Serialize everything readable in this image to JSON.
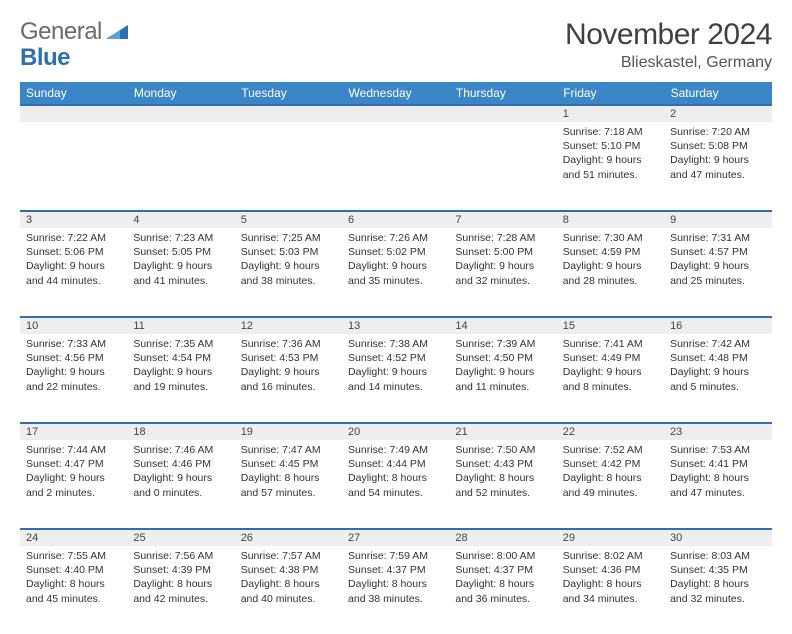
{
  "brand": {
    "name_a": "General",
    "name_b": "Blue"
  },
  "title": "November 2024",
  "location": "Blieskastel, Germany",
  "colors": {
    "header_bg": "#3b86c6",
    "header_text": "#ffffff",
    "accent_rule": "#2f6fb0",
    "daynum_bg": "#eeeeee",
    "page_bg": "#ffffff",
    "text": "#333333",
    "logo_gray": "#6a6a6a",
    "logo_blue": "#2f6fb0"
  },
  "typography": {
    "title_size_pt": 22,
    "header_size_pt": 9,
    "body_size_pt": 8
  },
  "days_of_week": [
    "Sunday",
    "Monday",
    "Tuesday",
    "Wednesday",
    "Thursday",
    "Friday",
    "Saturday"
  ],
  "weeks": [
    [
      null,
      null,
      null,
      null,
      null,
      {
        "n": "1",
        "sunrise": "Sunrise: 7:18 AM",
        "sunset": "Sunset: 5:10 PM",
        "daylight": "Daylight: 9 hours and 51 minutes."
      },
      {
        "n": "2",
        "sunrise": "Sunrise: 7:20 AM",
        "sunset": "Sunset: 5:08 PM",
        "daylight": "Daylight: 9 hours and 47 minutes."
      }
    ],
    [
      {
        "n": "3",
        "sunrise": "Sunrise: 7:22 AM",
        "sunset": "Sunset: 5:06 PM",
        "daylight": "Daylight: 9 hours and 44 minutes."
      },
      {
        "n": "4",
        "sunrise": "Sunrise: 7:23 AM",
        "sunset": "Sunset: 5:05 PM",
        "daylight": "Daylight: 9 hours and 41 minutes."
      },
      {
        "n": "5",
        "sunrise": "Sunrise: 7:25 AM",
        "sunset": "Sunset: 5:03 PM",
        "daylight": "Daylight: 9 hours and 38 minutes."
      },
      {
        "n": "6",
        "sunrise": "Sunrise: 7:26 AM",
        "sunset": "Sunset: 5:02 PM",
        "daylight": "Daylight: 9 hours and 35 minutes."
      },
      {
        "n": "7",
        "sunrise": "Sunrise: 7:28 AM",
        "sunset": "Sunset: 5:00 PM",
        "daylight": "Daylight: 9 hours and 32 minutes."
      },
      {
        "n": "8",
        "sunrise": "Sunrise: 7:30 AM",
        "sunset": "Sunset: 4:59 PM",
        "daylight": "Daylight: 9 hours and 28 minutes."
      },
      {
        "n": "9",
        "sunrise": "Sunrise: 7:31 AM",
        "sunset": "Sunset: 4:57 PM",
        "daylight": "Daylight: 9 hours and 25 minutes."
      }
    ],
    [
      {
        "n": "10",
        "sunrise": "Sunrise: 7:33 AM",
        "sunset": "Sunset: 4:56 PM",
        "daylight": "Daylight: 9 hours and 22 minutes."
      },
      {
        "n": "11",
        "sunrise": "Sunrise: 7:35 AM",
        "sunset": "Sunset: 4:54 PM",
        "daylight": "Daylight: 9 hours and 19 minutes."
      },
      {
        "n": "12",
        "sunrise": "Sunrise: 7:36 AM",
        "sunset": "Sunset: 4:53 PM",
        "daylight": "Daylight: 9 hours and 16 minutes."
      },
      {
        "n": "13",
        "sunrise": "Sunrise: 7:38 AM",
        "sunset": "Sunset: 4:52 PM",
        "daylight": "Daylight: 9 hours and 14 minutes."
      },
      {
        "n": "14",
        "sunrise": "Sunrise: 7:39 AM",
        "sunset": "Sunset: 4:50 PM",
        "daylight": "Daylight: 9 hours and 11 minutes."
      },
      {
        "n": "15",
        "sunrise": "Sunrise: 7:41 AM",
        "sunset": "Sunset: 4:49 PM",
        "daylight": "Daylight: 9 hours and 8 minutes."
      },
      {
        "n": "16",
        "sunrise": "Sunrise: 7:42 AM",
        "sunset": "Sunset: 4:48 PM",
        "daylight": "Daylight: 9 hours and 5 minutes."
      }
    ],
    [
      {
        "n": "17",
        "sunrise": "Sunrise: 7:44 AM",
        "sunset": "Sunset: 4:47 PM",
        "daylight": "Daylight: 9 hours and 2 minutes."
      },
      {
        "n": "18",
        "sunrise": "Sunrise: 7:46 AM",
        "sunset": "Sunset: 4:46 PM",
        "daylight": "Daylight: 9 hours and 0 minutes."
      },
      {
        "n": "19",
        "sunrise": "Sunrise: 7:47 AM",
        "sunset": "Sunset: 4:45 PM",
        "daylight": "Daylight: 8 hours and 57 minutes."
      },
      {
        "n": "20",
        "sunrise": "Sunrise: 7:49 AM",
        "sunset": "Sunset: 4:44 PM",
        "daylight": "Daylight: 8 hours and 54 minutes."
      },
      {
        "n": "21",
        "sunrise": "Sunrise: 7:50 AM",
        "sunset": "Sunset: 4:43 PM",
        "daylight": "Daylight: 8 hours and 52 minutes."
      },
      {
        "n": "22",
        "sunrise": "Sunrise: 7:52 AM",
        "sunset": "Sunset: 4:42 PM",
        "daylight": "Daylight: 8 hours and 49 minutes."
      },
      {
        "n": "23",
        "sunrise": "Sunrise: 7:53 AM",
        "sunset": "Sunset: 4:41 PM",
        "daylight": "Daylight: 8 hours and 47 minutes."
      }
    ],
    [
      {
        "n": "24",
        "sunrise": "Sunrise: 7:55 AM",
        "sunset": "Sunset: 4:40 PM",
        "daylight": "Daylight: 8 hours and 45 minutes."
      },
      {
        "n": "25",
        "sunrise": "Sunrise: 7:56 AM",
        "sunset": "Sunset: 4:39 PM",
        "daylight": "Daylight: 8 hours and 42 minutes."
      },
      {
        "n": "26",
        "sunrise": "Sunrise: 7:57 AM",
        "sunset": "Sunset: 4:38 PM",
        "daylight": "Daylight: 8 hours and 40 minutes."
      },
      {
        "n": "27",
        "sunrise": "Sunrise: 7:59 AM",
        "sunset": "Sunset: 4:37 PM",
        "daylight": "Daylight: 8 hours and 38 minutes."
      },
      {
        "n": "28",
        "sunrise": "Sunrise: 8:00 AM",
        "sunset": "Sunset: 4:37 PM",
        "daylight": "Daylight: 8 hours and 36 minutes."
      },
      {
        "n": "29",
        "sunrise": "Sunrise: 8:02 AM",
        "sunset": "Sunset: 4:36 PM",
        "daylight": "Daylight: 8 hours and 34 minutes."
      },
      {
        "n": "30",
        "sunrise": "Sunrise: 8:03 AM",
        "sunset": "Sunset: 4:35 PM",
        "daylight": "Daylight: 8 hours and 32 minutes."
      }
    ]
  ]
}
